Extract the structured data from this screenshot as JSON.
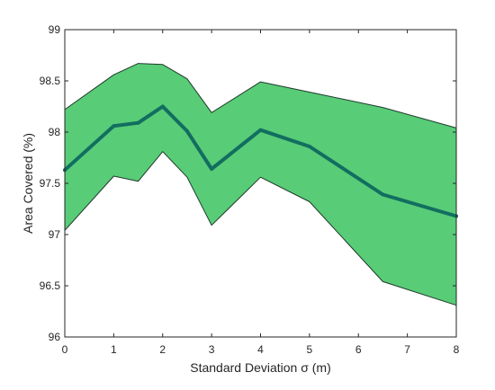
{
  "chart_data": {
    "type": "area",
    "xlabel": "Standard Deviation σ (m)",
    "ylabel": "Area Covered (%)",
    "xlim": [
      0,
      8
    ],
    "ylim": [
      96,
      99
    ],
    "x_ticks": [
      0,
      1,
      2,
      3,
      4,
      5,
      6,
      7,
      8
    ],
    "x_tick_labels": [
      "0",
      "1",
      "2",
      "3",
      "4",
      "5",
      "6",
      "7",
      "8"
    ],
    "y_ticks": [
      96,
      96.5,
      97,
      97.5,
      98,
      98.5,
      99
    ],
    "y_tick_labels": [
      "96",
      "96.5",
      "97",
      "97.5",
      "98",
      "98.5",
      "99"
    ],
    "grid": false,
    "x": [
      0,
      1,
      1.5,
      2,
      2.5,
      3,
      4,
      5,
      6.5,
      8
    ],
    "series": [
      {
        "role": "mean",
        "values": [
          97.63,
          98.06,
          98.09,
          98.25,
          98.01,
          97.64,
          98.02,
          97.86,
          97.39,
          97.18
        ]
      },
      {
        "role": "upper-bound",
        "values": [
          98.22,
          98.56,
          98.67,
          98.66,
          98.52,
          98.19,
          98.49,
          98.39,
          98.24,
          98.04
        ]
      },
      {
        "role": "lower-bound",
        "values": [
          97.04,
          97.57,
          97.52,
          97.81,
          97.56,
          97.09,
          97.56,
          97.32,
          96.54,
          96.31
        ]
      }
    ],
    "colors": {
      "band_fill": "#58cc77",
      "band_edge": "#1f3a2a",
      "mean_line": "#126e60",
      "axis": "#262626"
    }
  }
}
